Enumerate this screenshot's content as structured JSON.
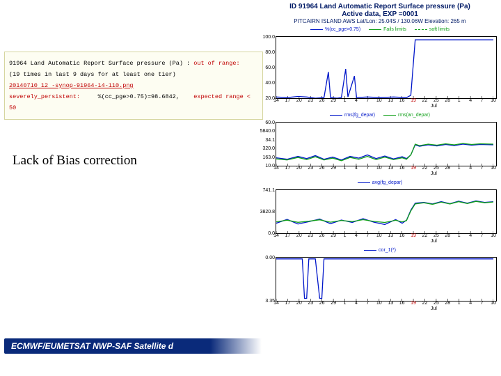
{
  "header": {
    "line1": "ID 91964 Land Automatic Report Surface pressure (Pa)",
    "line2": "Active data, EXP =0001",
    "line3": "PITCAIRN ISLAND AWS  Lat/Lon: 25.04S / 130.06W  Elevation:   265 m",
    "color": "#001a66",
    "size_l1": 10,
    "size_l2": 10,
    "size_l3": 8
  },
  "colors": {
    "series_blue": "#0016c9",
    "series_green": "#11a01a",
    "axis": "#000000",
    "grid": "#e6e6e6"
  },
  "xaxis": {
    "ticks": [
      "14",
      "17",
      "20",
      "23",
      "26",
      "29",
      "1",
      "4",
      "7",
      "10",
      "13",
      "16",
      "19",
      "22",
      "25",
      "28",
      "1",
      "4",
      "7",
      "10"
    ],
    "red_indices": [
      12
    ],
    "month_labels": [
      "Jul"
    ],
    "month_positions": [
      14
    ]
  },
  "charts": [
    {
      "key": "chart1",
      "height": 88,
      "legend": [
        {
          "label": "%(cc_pge>0.75)",
          "style": "solid",
          "color": "#0016c9"
        },
        {
          "label": "Fails limits",
          "style": "solid",
          "color": "#11a01a"
        },
        {
          "label": "soft limits",
          "style": "dashed",
          "color": "#11a01a"
        }
      ],
      "ylim": [
        0,
        105
      ],
      "ylabels": [
        "100.0",
        "80.0",
        "60.0",
        "40.0",
        "20.0"
      ],
      "series": [
        {
          "color": "#0016c9",
          "dash": null,
          "points": [
            [
              0.0,
              2
            ],
            [
              0.05,
              1
            ],
            [
              0.1,
              3
            ],
            [
              0.14,
              2
            ],
            [
              0.18,
              0
            ],
            [
              0.22,
              1
            ],
            [
              0.24,
              45
            ],
            [
              0.25,
              1
            ],
            [
              0.28,
              0
            ],
            [
              0.3,
              1
            ],
            [
              0.32,
              50
            ],
            [
              0.33,
              2
            ],
            [
              0.36,
              38
            ],
            [
              0.37,
              1
            ],
            [
              0.42,
              2
            ],
            [
              0.48,
              1
            ],
            [
              0.54,
              2
            ],
            [
              0.6,
              1
            ],
            [
              0.62,
              5
            ],
            [
              0.64,
              100
            ],
            [
              0.68,
              100
            ],
            [
              0.72,
              100
            ],
            [
              0.76,
              100
            ],
            [
              0.8,
              100
            ],
            [
              0.84,
              100
            ],
            [
              0.88,
              100
            ],
            [
              0.92,
              100
            ],
            [
              0.96,
              100
            ],
            [
              1.0,
              100
            ]
          ]
        }
      ]
    },
    {
      "key": "chart2",
      "height": 62,
      "legend": [
        {
          "label": "rms(fg_depar)",
          "style": "solid",
          "color": "#0016c9"
        },
        {
          "label": "rms(an_depar)",
          "style": "solid",
          "color": "#11a01a"
        }
      ],
      "ylim": [
        0,
        6000
      ],
      "ylabels": [
        "60.0",
        "5840.0",
        "34.1",
        "320.0",
        "163.0",
        "10.0"
      ],
      "series": [
        {
          "color": "#0016c9",
          "dash": null,
          "points": [
            [
              0.0,
              1100
            ],
            [
              0.05,
              900
            ],
            [
              0.1,
              1300
            ],
            [
              0.14,
              1000
            ],
            [
              0.18,
              1400
            ],
            [
              0.22,
              900
            ],
            [
              0.26,
              1200
            ],
            [
              0.3,
              800
            ],
            [
              0.34,
              1300
            ],
            [
              0.38,
              1050
            ],
            [
              0.42,
              1500
            ],
            [
              0.46,
              1000
            ],
            [
              0.5,
              1350
            ],
            [
              0.54,
              950
            ],
            [
              0.58,
              1250
            ],
            [
              0.6,
              1000
            ],
            [
              0.62,
              1500
            ],
            [
              0.64,
              2900
            ],
            [
              0.66,
              2700
            ],
            [
              0.7,
              2900
            ],
            [
              0.74,
              2750
            ],
            [
              0.78,
              2950
            ],
            [
              0.82,
              2800
            ],
            [
              0.86,
              3000
            ],
            [
              0.9,
              2850
            ],
            [
              0.94,
              2950
            ],
            [
              1.0,
              2900
            ]
          ]
        },
        {
          "color": "#11a01a",
          "dash": null,
          "points": [
            [
              0.0,
              950
            ],
            [
              0.05,
              800
            ],
            [
              0.1,
              1150
            ],
            [
              0.14,
              850
            ],
            [
              0.18,
              1250
            ],
            [
              0.22,
              800
            ],
            [
              0.26,
              1050
            ],
            [
              0.3,
              700
            ],
            [
              0.34,
              1150
            ],
            [
              0.38,
              900
            ],
            [
              0.42,
              1300
            ],
            [
              0.46,
              850
            ],
            [
              0.5,
              1200
            ],
            [
              0.54,
              850
            ],
            [
              0.58,
              1100
            ],
            [
              0.6,
              900
            ],
            [
              0.62,
              1500
            ],
            [
              0.64,
              3000
            ],
            [
              0.66,
              2800
            ],
            [
              0.7,
              3000
            ],
            [
              0.74,
              2850
            ],
            [
              0.78,
              3050
            ],
            [
              0.82,
              2900
            ],
            [
              0.86,
              3100
            ],
            [
              0.9,
              2950
            ],
            [
              0.94,
              3050
            ],
            [
              1.0,
              3000
            ]
          ]
        }
      ]
    },
    {
      "key": "chart3",
      "height": 62,
      "legend": [
        {
          "label": "avg(fg_depar)",
          "style": "solid",
          "color": "#0016c9"
        }
      ],
      "ylim": [
        -800,
        2000
      ],
      "ylabels": [
        "741.1",
        "3820.8",
        "0.0"
      ],
      "series": [
        {
          "color": "#0016c9",
          "dash": null,
          "points": [
            [
              0.0,
              -150
            ],
            [
              0.05,
              100
            ],
            [
              0.1,
              -200
            ],
            [
              0.15,
              -50
            ],
            [
              0.2,
              120
            ],
            [
              0.25,
              -180
            ],
            [
              0.3,
              60
            ],
            [
              0.35,
              -100
            ],
            [
              0.4,
              150
            ],
            [
              0.45,
              -80
            ],
            [
              0.5,
              -230
            ],
            [
              0.55,
              90
            ],
            [
              0.58,
              -150
            ],
            [
              0.6,
              50
            ],
            [
              0.62,
              700
            ],
            [
              0.64,
              1150
            ],
            [
              0.68,
              1200
            ],
            [
              0.72,
              1100
            ],
            [
              0.76,
              1250
            ],
            [
              0.8,
              1120
            ],
            [
              0.84,
              1280
            ],
            [
              0.88,
              1150
            ],
            [
              0.92,
              1300
            ],
            [
              0.96,
              1200
            ],
            [
              1.0,
              1250
            ]
          ]
        },
        {
          "color": "#11a01a",
          "dash": null,
          "points": [
            [
              0.0,
              -60
            ],
            [
              0.05,
              50
            ],
            [
              0.1,
              -90
            ],
            [
              0.15,
              -20
            ],
            [
              0.2,
              70
            ],
            [
              0.25,
              -80
            ],
            [
              0.3,
              30
            ],
            [
              0.35,
              -40
            ],
            [
              0.4,
              80
            ],
            [
              0.45,
              -30
            ],
            [
              0.5,
              -100
            ],
            [
              0.55,
              40
            ],
            [
              0.58,
              -60
            ],
            [
              0.6,
              20
            ],
            [
              0.62,
              650
            ],
            [
              0.64,
              1100
            ],
            [
              0.68,
              1180
            ],
            [
              0.72,
              1080
            ],
            [
              0.76,
              1220
            ],
            [
              0.8,
              1100
            ],
            [
              0.84,
              1250
            ],
            [
              0.88,
              1130
            ],
            [
              0.92,
              1270
            ],
            [
              0.96,
              1180
            ],
            [
              1.0,
              1230
            ]
          ]
        }
      ]
    },
    {
      "key": "chart4",
      "height": 62,
      "legend": [
        {
          "label": "cor_1(*)",
          "style": "solid",
          "color": "#0016c9"
        }
      ],
      "ylim": [
        -3400,
        100
      ],
      "ylabels": [
        "0.00",
        "3.35"
      ],
      "series": [
        {
          "color": "#0016c9",
          "dash": null,
          "points": [
            [
              0.0,
              0
            ],
            [
              0.1,
              0
            ],
            [
              0.12,
              0
            ],
            [
              0.13,
              -3200
            ],
            [
              0.14,
              -3200
            ],
            [
              0.15,
              0
            ],
            [
              0.18,
              0
            ],
            [
              0.2,
              -3200
            ],
            [
              0.21,
              -3200
            ],
            [
              0.22,
              0
            ],
            [
              0.3,
              0
            ],
            [
              0.4,
              0
            ],
            [
              0.5,
              0
            ],
            [
              0.6,
              0
            ],
            [
              0.7,
              0
            ],
            [
              0.8,
              0
            ],
            [
              0.9,
              0
            ],
            [
              1.0,
              0
            ]
          ]
        }
      ]
    }
  ],
  "report": {
    "line1_a": "91964 Land Automatic Report Surface pressure (Pa) : ",
    "line1_b": "out of range:",
    "line2": "(19 times in last 9 days for at least one tier)",
    "line3": "20140710 12 -synop-91964-14-110.png",
    "line4_a": "severely_persistent:",
    "line4_b": "%(cc_pge>0.75)=98.6842,",
    "line4_c": "expected range < 50"
  },
  "caption": "Lack of Bias correction",
  "footer": "ECMWF/EUMETSAT NWP-SAF Satellite d"
}
